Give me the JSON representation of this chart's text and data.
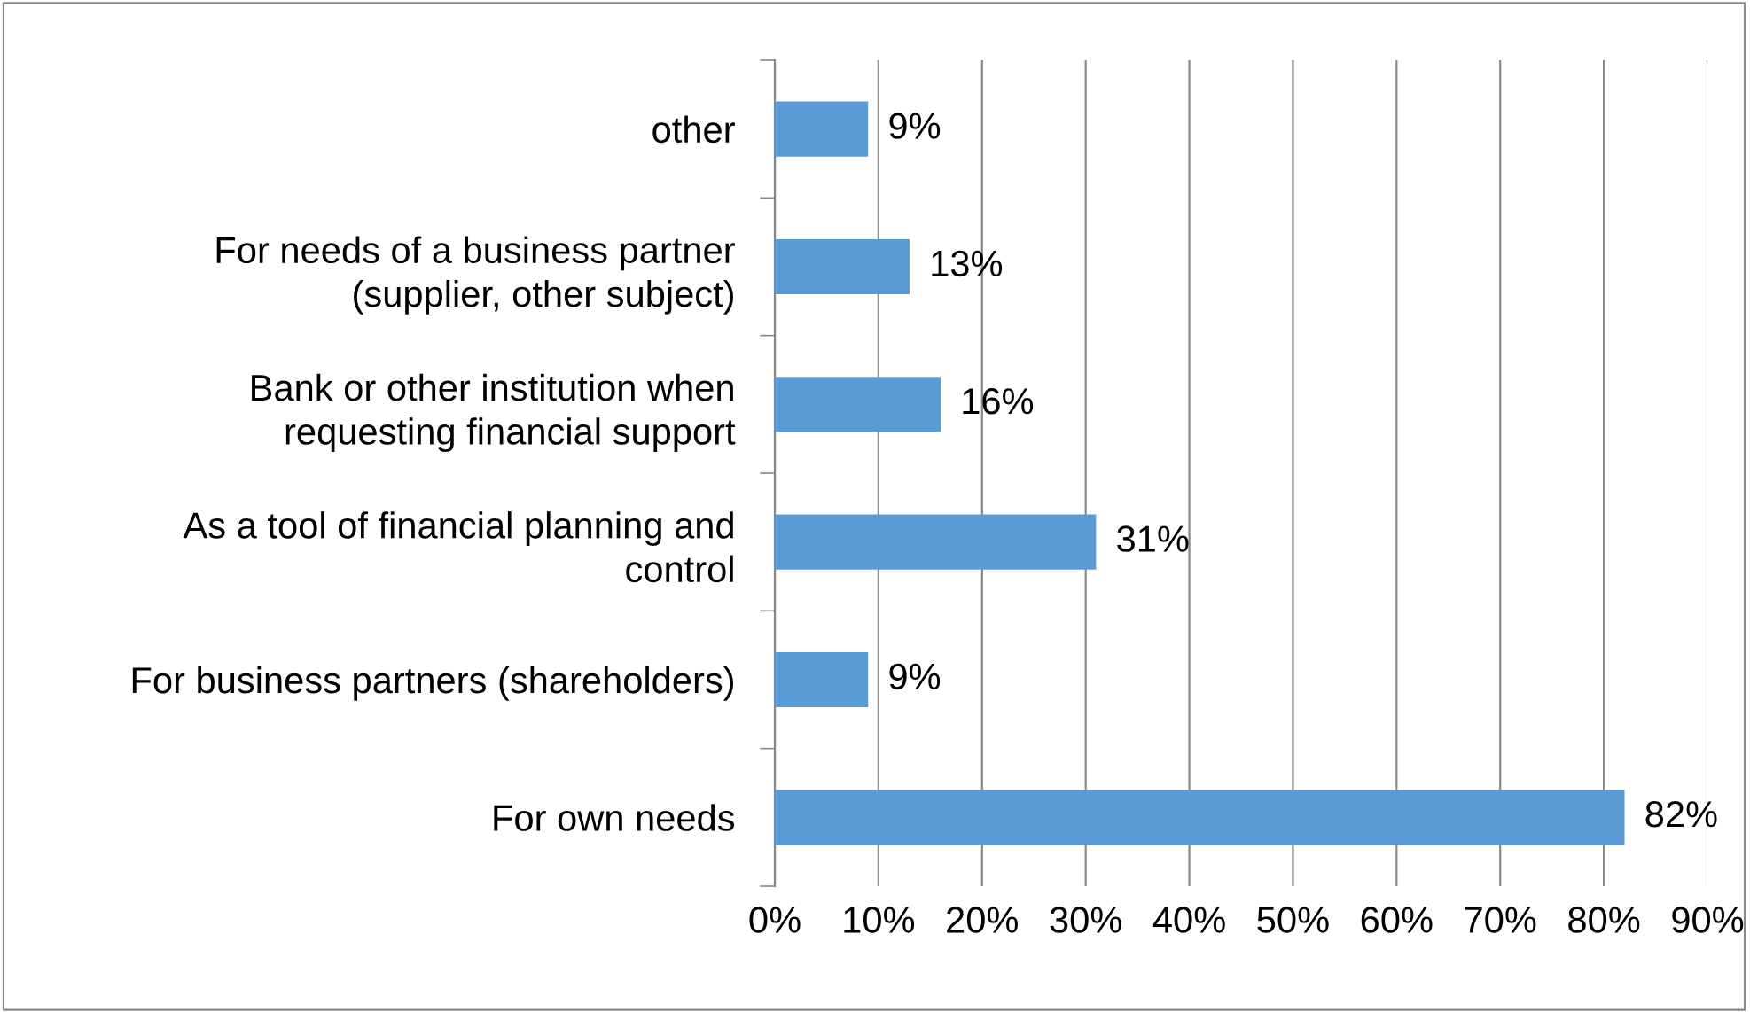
{
  "chart_data": {
    "type": "bar",
    "orientation": "horizontal",
    "categories": [
      "other",
      "For needs of a business partner\n(supplier, other subject)",
      "Bank or other institution when\nrequesting financial support",
      "As a tool of financial planning and\ncontrol",
      "For business partners (shareholders)",
      "For own needs"
    ],
    "values": [
      9,
      13,
      16,
      31,
      9,
      82
    ],
    "value_labels": [
      "9%",
      "13%",
      "16%",
      "31%",
      "9%",
      "82%"
    ],
    "color": "#5b9bd5",
    "xlim": [
      0,
      90
    ],
    "xticks": [
      {
        "value": 0,
        "label": "0%"
      },
      {
        "value": 10,
        "label": "10%"
      },
      {
        "value": 20,
        "label": "20%"
      },
      {
        "value": 30,
        "label": "30%"
      },
      {
        "value": 40,
        "label": "40%"
      },
      {
        "value": 50,
        "label": "50%"
      },
      {
        "value": 60,
        "label": "60%"
      },
      {
        "value": 70,
        "label": "70%"
      },
      {
        "value": 80,
        "label": "80%"
      },
      {
        "value": 90,
        "label": "90%"
      }
    ],
    "grid": "x"
  }
}
